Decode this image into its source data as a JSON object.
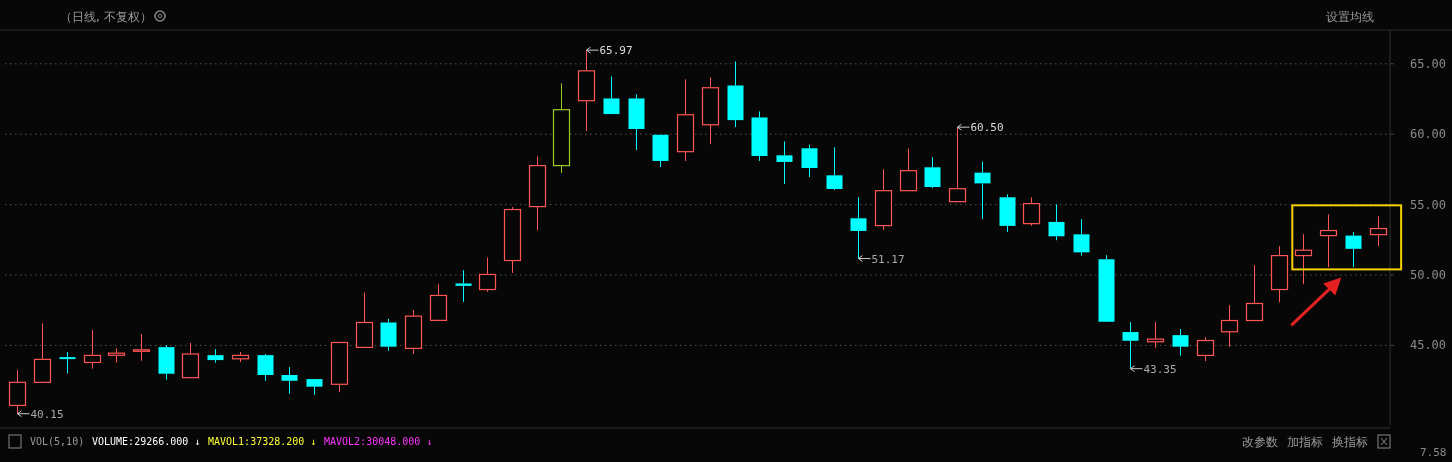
{
  "chart_data": {
    "type": "candlestick",
    "title": "（日线, 不复权）",
    "categories": [
      null,
      null,
      null,
      null,
      null,
      null,
      null,
      null,
      null,
      null,
      null,
      null,
      null,
      null,
      null,
      null,
      null,
      null,
      null,
      null,
      null,
      null,
      null,
      null,
      null,
      null,
      null,
      null,
      null,
      null,
      null,
      null,
      null,
      null,
      null,
      null,
      null,
      null,
      null,
      null,
      null,
      null,
      null,
      null,
      null,
      null,
      null,
      null,
      null,
      null,
      null,
      null,
      null,
      null,
      null,
      null
    ],
    "ohlc": [
      [
        40.74,
        43.25,
        40.15,
        42.38
      ],
      [
        42.38,
        46.56,
        42.38,
        44.01
      ],
      [
        44.17,
        44.53,
        43.01,
        44.03
      ],
      [
        43.79,
        46.09,
        43.35,
        44.29
      ],
      [
        44.3,
        44.79,
        43.77,
        44.45
      ],
      [
        44.64,
        45.8,
        43.91,
        44.69
      ],
      [
        44.88,
        45.02,
        42.57,
        42.99
      ],
      [
        42.71,
        45.17,
        42.71,
        44.39
      ],
      [
        44.31,
        44.74,
        43.77,
        43.96
      ],
      [
        44.05,
        44.53,
        43.82,
        44.29
      ],
      [
        44.31,
        44.39,
        42.49,
        42.9
      ],
      [
        42.9,
        43.46,
        41.57,
        42.49
      ],
      [
        42.61,
        42.61,
        41.5,
        42.07
      ],
      [
        42.24,
        45.21,
        41.69,
        45.21
      ],
      [
        44.86,
        48.76,
        44.86,
        46.63
      ],
      [
        46.63,
        46.89,
        44.62,
        44.91
      ],
      [
        44.79,
        47.51,
        44.41,
        47.08
      ],
      [
        46.78,
        49.35,
        46.78,
        48.55
      ],
      [
        49.4,
        50.34,
        48.1,
        49.23
      ],
      [
        48.97,
        51.24,
        48.81,
        50.04
      ],
      [
        51.03,
        54.83,
        50.15,
        54.65
      ],
      [
        54.86,
        58.43,
        53.18,
        57.77
      ],
      [
        57.77,
        63.61,
        57.25,
        61.74
      ],
      [
        62.38,
        65.97,
        60.22,
        64.5
      ],
      [
        62.54,
        64.1,
        61.43,
        61.43
      ],
      [
        62.54,
        62.83,
        58.88,
        60.37
      ],
      [
        59.96,
        59.96,
        57.67,
        58.1
      ],
      [
        58.76,
        63.89,
        58.1,
        61.38
      ],
      [
        60.67,
        64.03,
        59.3,
        63.3
      ],
      [
        63.46,
        65.17,
        60.51,
        61.0
      ],
      [
        61.19,
        61.62,
        58.1,
        58.45
      ],
      [
        58.5,
        59.49,
        56.47,
        58.03
      ],
      [
        59.0,
        59.26,
        56.96,
        57.6
      ],
      [
        57.08,
        59.07,
        56.04,
        56.11
      ],
      [
        54.03,
        55.52,
        51.17,
        53.13
      ],
      [
        53.51,
        57.51,
        53.2,
        55.99
      ],
      [
        55.99,
        58.99,
        55.99,
        57.41
      ],
      [
        57.65,
        58.36,
        56.18,
        56.25
      ],
      [
        55.21,
        60.5,
        55.21,
        56.13
      ],
      [
        57.27,
        58.05,
        53.97,
        56.51
      ],
      [
        55.52,
        55.73,
        53.06,
        53.49
      ],
      [
        53.65,
        55.52,
        53.49,
        55.07
      ],
      [
        53.77,
        55.02,
        52.47,
        52.75
      ],
      [
        52.89,
        53.96,
        51.38,
        51.61
      ],
      [
        51.12,
        51.41,
        46.68,
        46.68
      ],
      [
        45.95,
        46.65,
        43.35,
        45.33
      ],
      [
        45.26,
        46.65,
        44.83,
        45.45
      ],
      [
        45.73,
        46.16,
        44.27,
        44.91
      ],
      [
        44.29,
        45.59,
        43.89,
        45.35
      ],
      [
        45.97,
        47.86,
        44.91,
        46.77
      ],
      [
        46.77,
        50.7,
        46.77,
        47.98
      ],
      [
        48.97,
        52.05,
        48.07,
        51.38
      ],
      [
        51.38,
        52.9,
        49.35,
        51.76
      ],
      [
        52.8,
        54.31,
        50.56,
        53.16
      ],
      [
        52.8,
        53.04,
        50.56,
        51.86
      ],
      [
        52.87,
        54.17,
        52.05,
        53.3
      ]
    ],
    "colors": [
      "#ff5555",
      "#ff5555",
      "#00ffff",
      "#ff5555",
      "#ff5555",
      "#ff5555",
      "#00ffff",
      "#ff5555",
      "#00ffff",
      "#ff5555",
      "#00ffff",
      "#00ffff",
      "#00ffff",
      "#ff5555",
      "#ff5555",
      "#00ffff",
      "#ff5555",
      "#ff5555",
      "#00ffff",
      "#ff5555",
      "#ff5555",
      "#ff5555",
      "#99cc22",
      "#ff5555",
      "#00ffff",
      "#00ffff",
      "#00ffff",
      "#ff5555",
      "#ff5555",
      "#00ffff",
      "#00ffff",
      "#00ffff",
      "#00ffff",
      "#00ffff",
      "#00ffff",
      "#ff5555",
      "#ff5555",
      "#00ffff",
      "#ff5555",
      "#00ffff",
      "#00ffff",
      "#ff5555",
      "#00ffff",
      "#00ffff",
      "#00ffff",
      "#00ffff",
      "#ff5555",
      "#00ffff",
      "#ff5555",
      "#ff5555",
      "#ff5555",
      "#ff5555",
      "#ff5555",
      "#ff5555",
      "#00ffff",
      "#ff5555"
    ],
    "ylim": [
      39.35,
      67.4
    ],
    "yticks": [
      {
        "value": 45,
        "label": "45.00"
      },
      {
        "value": 50,
        "label": "50.00"
      },
      {
        "value": 55,
        "label": "55.00"
      },
      {
        "value": 60,
        "label": "60.00"
      },
      {
        "value": 65,
        "label": "65.00"
      }
    ],
    "grid": "y",
    "annotations": [
      "65.97",
      "60.50",
      "51.17",
      "43.35",
      "40.15",
      "设置均线",
      "VOL(5,10)",
      "VOLUME:29266.000 ↓",
      "MAVOL1:37328.200 ↓",
      "MAVOL2:30048.000 ↓",
      "改参数",
      "加指标",
      "换指标",
      "7.58"
    ]
  }
}
